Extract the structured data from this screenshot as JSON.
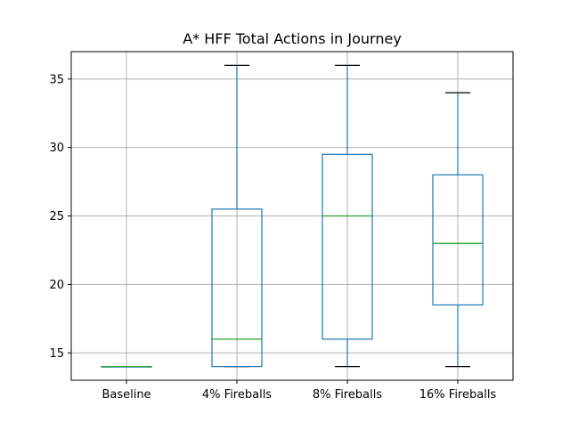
{
  "chart_data": {
    "type": "box",
    "title": "A* HFF Total Actions in Journey",
    "xlabel": "",
    "ylabel": "",
    "ylim": [
      13,
      37
    ],
    "yticks": [
      15,
      20,
      25,
      30,
      35
    ],
    "grid": true,
    "legend": "none",
    "categories": [
      "Baseline",
      "4% Fireballs",
      "8% Fireballs",
      "16% Fireballs"
    ],
    "boxes": [
      {
        "whisker_low": 14,
        "q1": 14,
        "median": 14,
        "q3": 14,
        "whisker_high": 14
      },
      {
        "whisker_low": 14,
        "q1": 14,
        "median": 16,
        "q3": 25.5,
        "whisker_high": 36
      },
      {
        "whisker_low": 14,
        "q1": 16,
        "median": 25,
        "q3": 29.5,
        "whisker_high": 36
      },
      {
        "whisker_low": 14,
        "q1": 18.5,
        "median": 23,
        "q3": 28,
        "whisker_high": 34
      }
    ],
    "colors": {
      "box": "#1f77b4",
      "median": "#2ca02c",
      "cap": "#000000",
      "grid": "#b0b0b0",
      "axis": "#000000"
    }
  }
}
